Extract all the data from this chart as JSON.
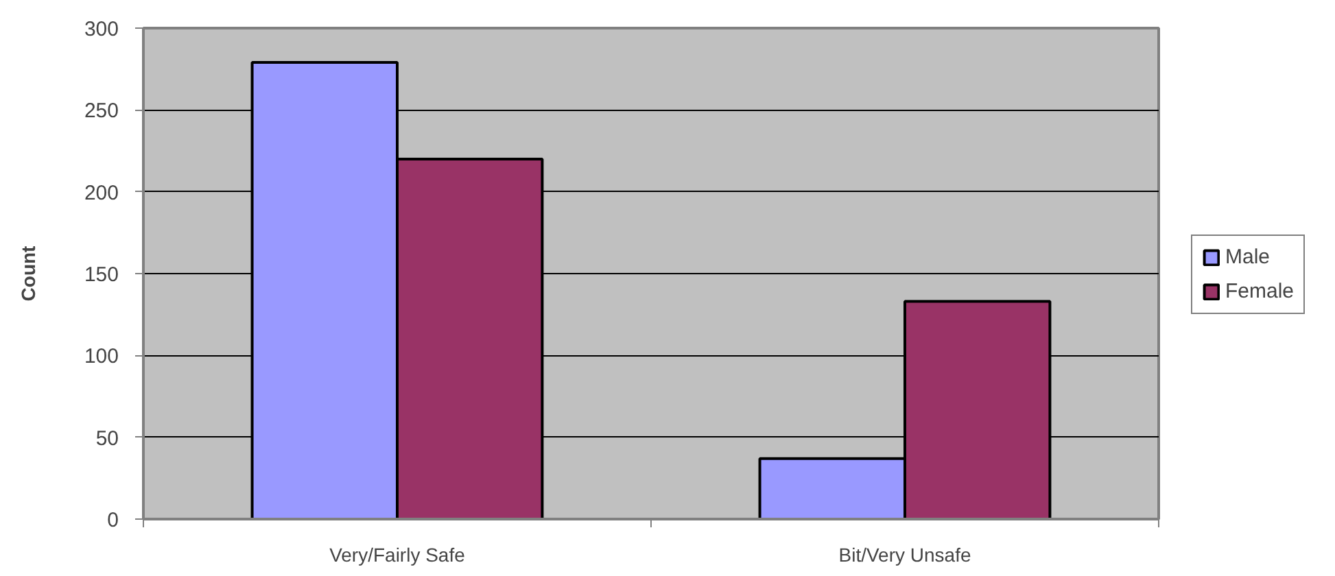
{
  "chart_data": {
    "type": "bar",
    "ylabel": "Count",
    "categories": [
      "Very/Fairly Safe",
      "Bit/Very Unsafe"
    ],
    "series": [
      {
        "name": "Male",
        "color": "#9999ff",
        "values": [
          279,
          37
        ]
      },
      {
        "name": "Female",
        "color": "#993366",
        "values": [
          220,
          133
        ]
      }
    ],
    "ylim": [
      0,
      300
    ],
    "yticks": [
      0,
      50,
      100,
      150,
      200,
      250,
      300
    ],
    "grid": "y",
    "legend": "right"
  }
}
